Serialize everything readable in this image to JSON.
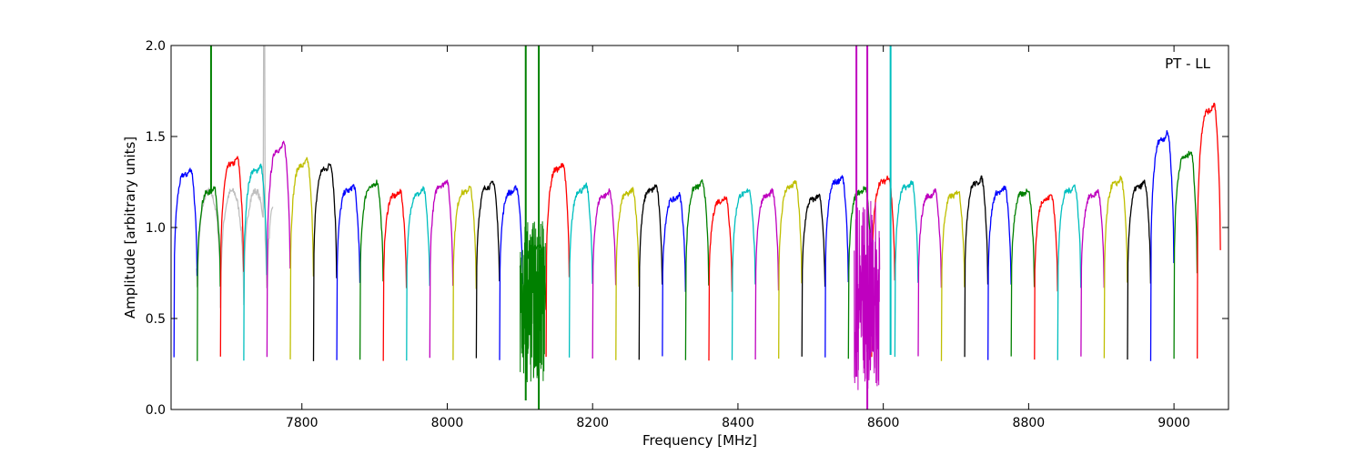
{
  "chart_data": {
    "type": "line",
    "title": "",
    "xlabel": "Frequency [MHz]",
    "ylabel": "Amplitude [arbitrary units]",
    "xlim": [
      7620,
      9075
    ],
    "ylim": [
      0.0,
      2.0
    ],
    "xticks": [
      7800,
      8000,
      8200,
      8400,
      8600,
      8800,
      9000
    ],
    "yticks": [
      0.0,
      0.5,
      1.0,
      1.5,
      2.0
    ],
    "ytick_labels": [
      "0.0",
      "0.5",
      "1.0",
      "1.5",
      "2.0"
    ],
    "grid": false,
    "annotation": "PT - LL",
    "color_cycle": [
      "#0000ff",
      "#008000",
      "#ff0000",
      "#00bfbf",
      "#bf00bf",
      "#bfbf00",
      "#000000"
    ],
    "channel_width_mhz": 32,
    "channel_centers": [
      7640,
      7672,
      7704,
      7736,
      7768,
      7800,
      7832,
      7864,
      7896,
      7928,
      7960,
      7992,
      8024,
      8056,
      8088,
      8120,
      8152,
      8184,
      8216,
      8248,
      8280,
      8312,
      8344,
      8376,
      8408,
      8440,
      8472,
      8504,
      8536,
      8568,
      8600,
      8632,
      8664,
      8696,
      8728,
      8760,
      8792,
      8824,
      8856,
      8888,
      8920,
      8952,
      8984,
      9016,
      9048
    ],
    "channel_levels": [
      1.32,
      1.22,
      1.38,
      1.34,
      1.46,
      1.37,
      1.35,
      1.23,
      1.25,
      1.2,
      1.21,
      1.26,
      1.22,
      1.25,
      1.22,
      0.9,
      1.35,
      1.23,
      1.2,
      1.21,
      1.23,
      1.18,
      1.25,
      1.17,
      1.21,
      1.2,
      1.25,
      1.18,
      1.28,
      1.22,
      1.28,
      1.25,
      1.2,
      1.2,
      1.27,
      1.22,
      1.21,
      1.18,
      1.23,
      1.2,
      1.27,
      1.25,
      1.52,
      1.42,
      1.68
    ],
    "channel_minimum": 0.28,
    "background_series": {
      "color": "#bfbfbf",
      "peak": {
        "x": 7748,
        "y": 2.0
      },
      "range": [
        7655,
        7760
      ]
    },
    "spikes": [
      {
        "x": 7675,
        "color": "#008000",
        "ymin": 1.2,
        "ymax": 2.0
      },
      {
        "x": 8108,
        "color": "#008000",
        "ymin": 0.05,
        "ymax": 2.0
      },
      {
        "x": 8126,
        "color": "#008000",
        "ymin": 0.0,
        "ymax": 2.0
      },
      {
        "x": 8563,
        "color": "#bf00bf",
        "ymin": 0.18,
        "ymax": 2.0
      },
      {
        "x": 8578,
        "color": "#bf00bf",
        "ymin": 0.0,
        "ymax": 2.0
      },
      {
        "x": 8610,
        "color": "#00bfbf",
        "ymin": 0.3,
        "ymax": 2.0
      }
    ],
    "noisy_regions": [
      {
        "from": 8100,
        "to": 8135,
        "color": "#008000",
        "ymin": 0.15,
        "ymax": 1.05
      },
      {
        "from": 8560,
        "to": 8595,
        "color": "#bf00bf",
        "ymin": 0.1,
        "ymax": 1.15
      }
    ]
  }
}
